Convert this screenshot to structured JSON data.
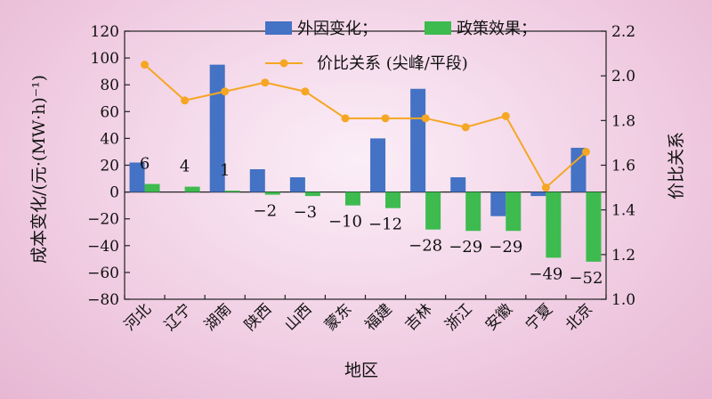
{
  "chart_data": {
    "type": "bar+line",
    "categories": [
      "河北",
      "辽宁",
      "湖南",
      "陕西",
      "山西",
      "蒙东",
      "福建",
      "吉林",
      "浙江",
      "安徽",
      "宁夏",
      "北京"
    ],
    "series": [
      {
        "name": "外因变化；",
        "type": "bar",
        "axis": "left",
        "color": "#4472c4",
        "values": [
          22,
          0,
          95,
          17,
          11,
          0,
          40,
          77,
          11,
          -18,
          -3,
          33
        ]
      },
      {
        "name": "政策效果；",
        "type": "bar",
        "axis": "left",
        "color": "#3dbb4f",
        "values": [
          6,
          4,
          1,
          -2,
          -3,
          -10,
          -12,
          -28,
          -29,
          -29,
          -49,
          -52
        ],
        "labels": [
          "6",
          "4",
          "1",
          "−2",
          "−3",
          "−10",
          "−12",
          "−28",
          "−29",
          "−29",
          "−49",
          "−52"
        ]
      },
      {
        "name": "价比关系 (尖峰/平段)",
        "type": "line",
        "axis": "right",
        "color": "#f5a623",
        "values": [
          2.05,
          1.89,
          1.93,
          1.97,
          1.93,
          1.81,
          1.81,
          1.81,
          1.77,
          1.82,
          1.5,
          1.66
        ]
      }
    ],
    "xlabel": "地区",
    "ylabel_left": "成本变化/(元·(MW·h)⁻¹)",
    "ylabel_right": "价比关系",
    "ylim_left": [
      -80,
      120
    ],
    "yticks_left": [
      120,
      100,
      80,
      60,
      40,
      20,
      0,
      -20,
      -40,
      -60,
      -80
    ],
    "ytick_labels_left": [
      "120",
      "100",
      "80",
      "60",
      "40",
      "20",
      "0",
      "−20",
      "−40",
      "−60",
      "−80"
    ],
    "ylim_right": [
      1.0,
      2.2
    ],
    "yticks_right": [
      2.2,
      2.0,
      1.8,
      1.6,
      1.4,
      1.2,
      1.0
    ],
    "ytick_labels_right": [
      "2.2",
      "2.0",
      "1.8",
      "1.6",
      "1.4",
      "1.2",
      "1.0"
    ],
    "legend_position": "top-right",
    "grid": false
  }
}
